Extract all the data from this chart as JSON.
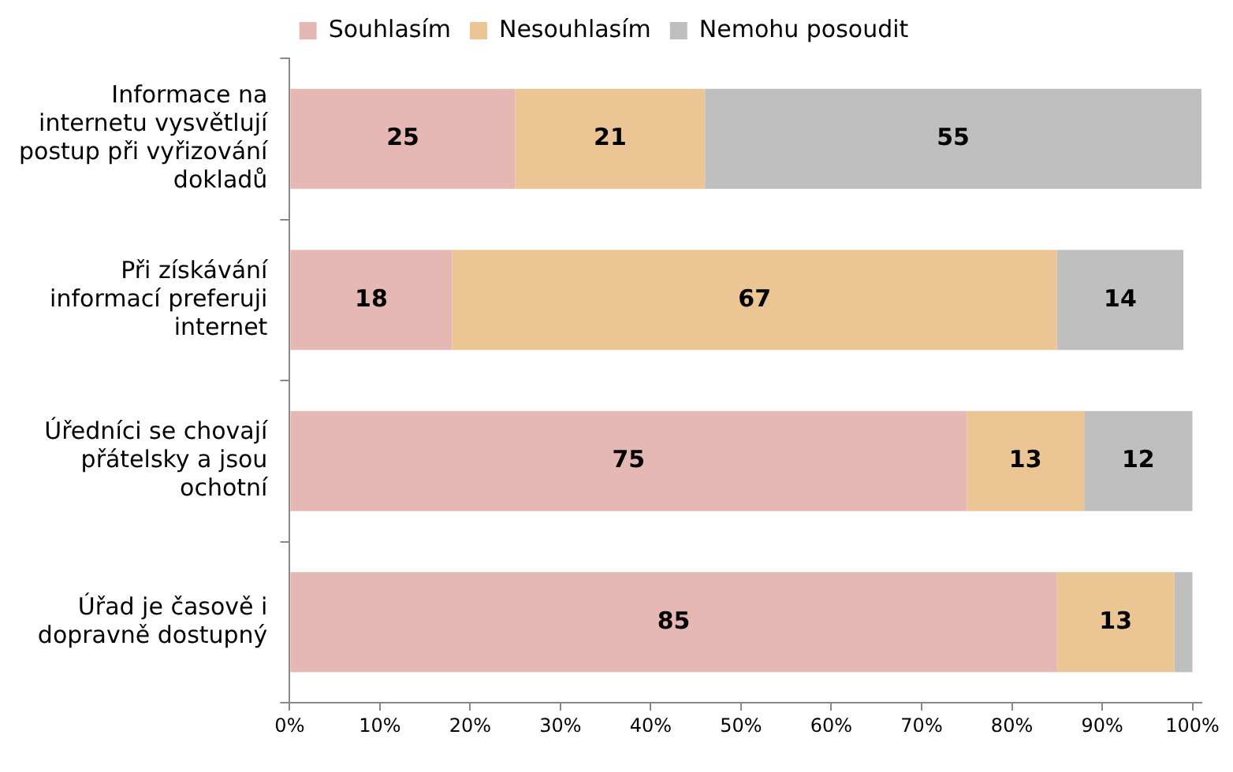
{
  "chart_data": {
    "type": "bar",
    "orientation": "horizontal",
    "stacked": true,
    "categories": [
      "Informace na internetu vysvětlují postup při vyřizování dokladů",
      "Při získávání informací preferuji internet",
      "Úředníci se chovají přátelsky a jsou ochotní",
      "Úřad je časově i dopravně dostupný"
    ],
    "series": [
      {
        "name": "Souhlasím",
        "color": "#e6b8b3",
        "values": [
          25,
          18,
          75,
          85
        ],
        "value_labels": [
          "25",
          "18",
          "75",
          "85"
        ]
      },
      {
        "name": "Nesouhlasím",
        "color": "#ebc594",
        "values": [
          21,
          67,
          13,
          13
        ],
        "value_labels": [
          "21",
          "67",
          "13",
          "13"
        ]
      },
      {
        "name": "Nemohu posoudit",
        "color": "#bfbfbf",
        "values": [
          55,
          14,
          12,
          2
        ],
        "value_labels": [
          "55",
          "14",
          "12",
          null
        ]
      }
    ],
    "xlim": [
      0,
      101
    ],
    "xticks": [
      {
        "value": 0,
        "label": "0%"
      },
      {
        "value": 10,
        "label": "10%"
      },
      {
        "value": 20,
        "label": "20%"
      },
      {
        "value": 30,
        "label": "30%"
      },
      {
        "value": 40,
        "label": "40%"
      },
      {
        "value": 50,
        "label": "50%"
      },
      {
        "value": 60,
        "label": "60%"
      },
      {
        "value": 70,
        "label": "70%"
      },
      {
        "value": 80,
        "label": "80%"
      },
      {
        "value": 90,
        "label": "90%"
      },
      {
        "value": 100,
        "label": "100%"
      }
    ],
    "legend": "top",
    "grid": false
  }
}
